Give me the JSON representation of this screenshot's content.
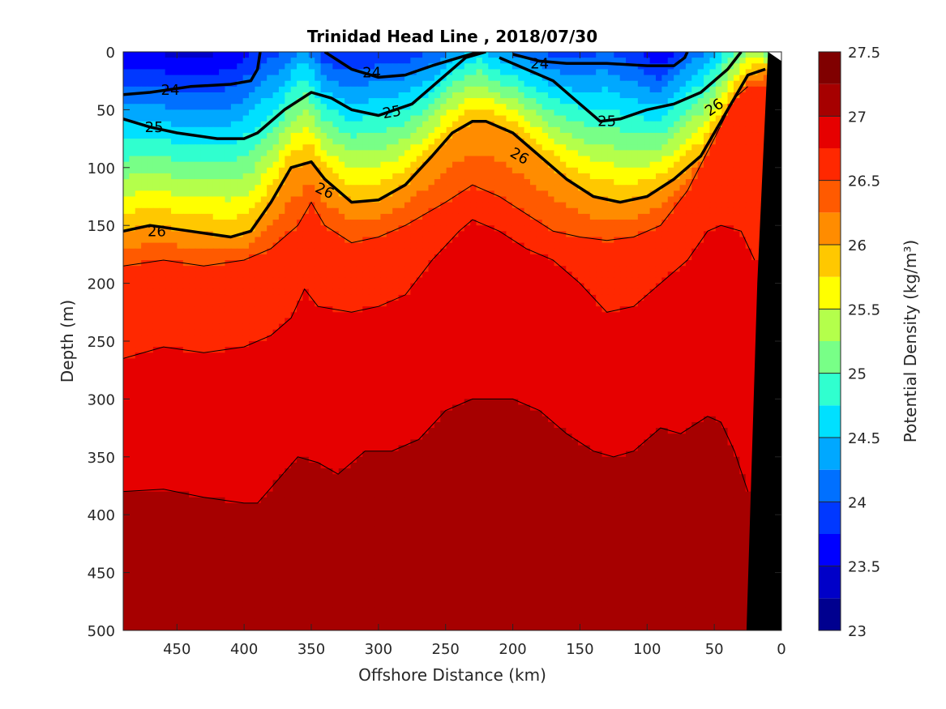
{
  "chart_data": {
    "type": "contourf",
    "title": "Trinidad Head Line , 2018/07/30",
    "xlabel": "Offshore Distance (km)",
    "ylabel": "Depth (m)",
    "colorbar_label": "Potential Density (kg/m³)",
    "xlim": [
      490,
      0
    ],
    "ylim": [
      0,
      500
    ],
    "x_reversed": true,
    "y_reversed": true,
    "x_ticks": [
      450,
      400,
      350,
      300,
      250,
      200,
      150,
      100,
      50,
      0
    ],
    "y_ticks": [
      0,
      50,
      100,
      150,
      200,
      250,
      300,
      350,
      400,
      450,
      500
    ],
    "colorbar_ticks": [
      23,
      23.5,
      24,
      24.5,
      25,
      25.5,
      26,
      26.5,
      27,
      27.5
    ],
    "levels": [
      23,
      23.25,
      23.5,
      23.75,
      24,
      24.25,
      24.5,
      24.75,
      25,
      25.25,
      25.5,
      25.75,
      26,
      26.25,
      26.5,
      26.75,
      27,
      27.25,
      27.5
    ],
    "colormap": [
      "#00008f",
      "#0000c8",
      "#0000ff",
      "#0038ff",
      "#0070ff",
      "#00a8ff",
      "#00e0ff",
      "#30ffcf",
      "#78ff87",
      "#b4ff4b",
      "#ffff00",
      "#ffc800",
      "#ff8c00",
      "#ff5a00",
      "#ff2800",
      "#e60000",
      "#a60000",
      "#800000"
    ],
    "bathymetry_color": "#000000",
    "contour_labels": [
      "24",
      "24",
      "24",
      "25",
      "25",
      "25",
      "26",
      "26",
      "26",
      "26"
    ],
    "isopycnals": [
      {
        "level": 24,
        "x": [
          490,
          470,
          440,
          410,
          395,
          390,
          388
        ],
        "y": [
          37,
          35,
          30,
          28,
          25,
          15,
          0
        ]
      },
      {
        "level": 24,
        "x": [
          340,
          320,
          300,
          280,
          260,
          240,
          225
        ],
        "y": [
          0,
          15,
          22,
          20,
          12,
          5,
          0
        ]
      },
      {
        "level": 24,
        "x": [
          200,
          180,
          160,
          130,
          100,
          80,
          72,
          70
        ],
        "y": [
          2,
          8,
          10,
          10,
          12,
          12,
          5,
          0
        ]
      },
      {
        "level": 25,
        "x": [
          490,
          470,
          450,
          420,
          400,
          390,
          370,
          350,
          335,
          320,
          300,
          275,
          255,
          235,
          220
        ],
        "y": [
          58,
          65,
          70,
          75,
          75,
          70,
          50,
          35,
          40,
          50,
          55,
          45,
          25,
          5,
          0
        ]
      },
      {
        "level": 25,
        "x": [
          210,
          190,
          170,
          150,
          135,
          120,
          100,
          80,
          60,
          40,
          30
        ],
        "y": [
          5,
          15,
          25,
          45,
          60,
          58,
          50,
          45,
          35,
          15,
          0
        ]
      },
      {
        "level": 26,
        "x": [
          490,
          470,
          440,
          410,
          395,
          380,
          365,
          350,
          340,
          320,
          300,
          280,
          260,
          245,
          230,
          220,
          200,
          180,
          160,
          140,
          120,
          100,
          80,
          60,
          40,
          25,
          12
        ],
        "y": [
          155,
          150,
          155,
          160,
          155,
          130,
          100,
          95,
          110,
          130,
          128,
          115,
          90,
          70,
          60,
          60,
          70,
          90,
          110,
          125,
          130,
          125,
          110,
          90,
          50,
          20,
          15
        ]
      }
    ],
    "density_structure": {
      "depth_of_26.5": {
        "x": [
          490,
          460,
          430,
          400,
          380,
          360,
          350,
          340,
          320,
          300,
          280,
          250,
          230,
          210,
          190,
          170,
          150,
          130,
          110,
          90,
          70,
          50,
          35,
          25
        ],
        "y": [
          185,
          180,
          185,
          180,
          170,
          150,
          130,
          150,
          165,
          160,
          150,
          130,
          115,
          125,
          140,
          155,
          160,
          163,
          160,
          150,
          120,
          75,
          40,
          30
        ]
      },
      "depth_of_26.75": {
        "x": [
          490,
          460,
          430,
          400,
          380,
          365,
          355,
          345,
          320,
          300,
          280,
          260,
          240,
          230,
          210,
          190,
          170,
          150,
          130,
          110,
          90,
          70,
          55,
          45,
          30,
          20
        ],
        "y": [
          265,
          255,
          260,
          255,
          245,
          230,
          205,
          220,
          225,
          220,
          210,
          180,
          155,
          145,
          155,
          170,
          180,
          200,
          225,
          220,
          200,
          180,
          155,
          150,
          155,
          180
        ]
      },
      "depth_of_27": {
        "x": [
          490,
          460,
          430,
          400,
          390,
          375,
          360,
          345,
          330,
          310,
          290,
          270,
          250,
          230,
          200,
          180,
          160,
          140,
          125,
          110,
          90,
          75,
          55,
          45,
          35,
          25
        ],
        "y": [
          380,
          378,
          385,
          390,
          390,
          370,
          350,
          355,
          365,
          345,
          345,
          335,
          310,
          300,
          300,
          310,
          330,
          345,
          350,
          345,
          325,
          330,
          315,
          320,
          345,
          380
        ]
      }
    },
    "bathymetry": {
      "x": [
        10,
        18,
        26,
        0,
        0
      ],
      "y": [
        0,
        200,
        500,
        500,
        0
      ]
    }
  }
}
